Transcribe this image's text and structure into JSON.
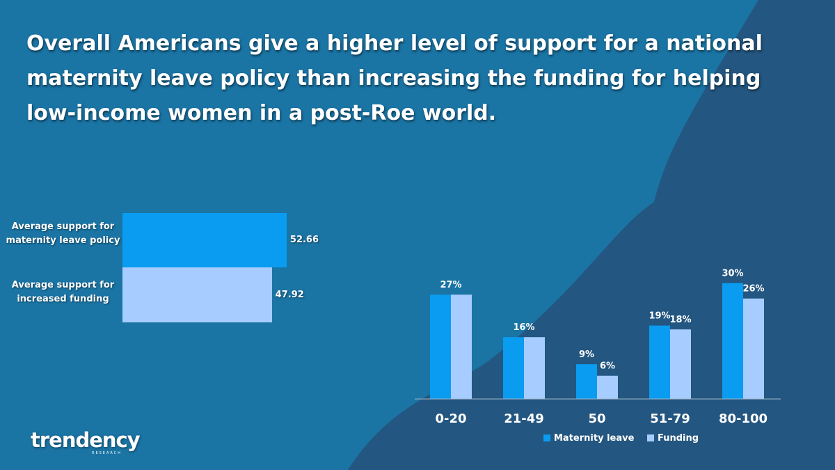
{
  "title": "Overall Americans give a higher level of support for a national maternity leave policy than increasing the funding for helping low-income women in a post-Roe world.",
  "colors": {
    "background": "#1a74a4",
    "background_dark": "#235680",
    "maternity": "#0a9cf0",
    "funding": "#a7ccff"
  },
  "logo": {
    "name": "trendency",
    "sub": "RESEARCH"
  },
  "chart_data": [
    {
      "type": "bar",
      "orientation": "horizontal",
      "categories": [
        "Average support for maternity leave policy",
        "Average support for increased funding"
      ],
      "values": [
        52.66,
        47.92
      ],
      "value_labels": [
        "52.66",
        "47.92"
      ],
      "xlim": [
        0,
        100
      ]
    },
    {
      "type": "bar",
      "categories": [
        "0-20",
        "21-49",
        "50",
        "51-79",
        "80-100"
      ],
      "series": [
        {
          "name": "Maternity leave",
          "values": [
            27,
            16,
            9,
            19,
            30
          ],
          "labels": [
            "27%",
            "16%",
            "9%",
            "19%",
            "30%"
          ]
        },
        {
          "name": "Funding",
          "values": [
            27,
            16,
            6,
            18,
            26
          ],
          "labels": [
            "",
            "",
            "6%",
            "18%",
            "26%"
          ]
        }
      ],
      "ylim": [
        0,
        33
      ],
      "legend": "bottom"
    }
  ]
}
